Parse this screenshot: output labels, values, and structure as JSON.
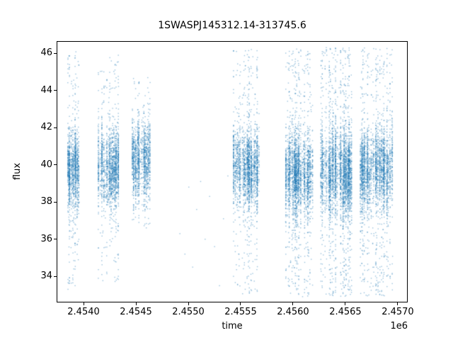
{
  "chart_data": {
    "type": "scatter",
    "title": "1SWASPJ145312.14-313745.6",
    "xlabel": "time",
    "ylabel": "flux",
    "x_offset_label": "1e6",
    "xlim": [
      2453743,
      2457095
    ],
    "ylim": [
      32.6,
      46.65
    ],
    "grid": false,
    "legend": null,
    "point_color": "#1f77b4",
    "point_alpha": 0.45,
    "marker_size_px": 1.4,
    "seed": 123456,
    "x_ticks": {
      "values": [
        2454000,
        2454500,
        2455000,
        2455500,
        2456000,
        2456500,
        2457000
      ],
      "labels": [
        "2.4540",
        "2.4545",
        "2.4550",
        "2.4555",
        "2.4560",
        "2.4565",
        "2.4570"
      ]
    },
    "y_ticks": {
      "values": [
        34,
        36,
        38,
        40,
        42,
        44,
        46
      ],
      "labels": [
        "34",
        "36",
        "38",
        "40",
        "42",
        "44",
        "46"
      ]
    },
    "clusters": [
      {
        "x_min": 2453845,
        "x_max": 2453962,
        "n_points": 1300,
        "n_nights": 12,
        "y_mean": 39.7,
        "y_core_sigma": 1.0,
        "tail_frac": 0.12,
        "y_min": 33.3,
        "y_max": 46.1
      },
      {
        "x_min": 2454132,
        "x_max": 2454340,
        "n_points": 1700,
        "n_nights": 18,
        "y_mean": 39.7,
        "y_core_sigma": 1.05,
        "tail_frac": 0.11,
        "y_min": 33.6,
        "y_max": 45.9
      },
      {
        "x_min": 2454458,
        "x_max": 2454640,
        "n_points": 1400,
        "n_nights": 16,
        "y_mean": 40.1,
        "y_core_sigma": 1.05,
        "tail_frac": 0.07,
        "y_min": 36.6,
        "y_max": 44.7
      },
      {
        "x_min": 2455428,
        "x_max": 2455680,
        "n_points": 2100,
        "n_nights": 22,
        "y_mean": 39.7,
        "y_core_sigma": 1.0,
        "tail_frac": 0.16,
        "y_min": 33.0,
        "y_max": 46.2
      },
      {
        "x_min": 2455928,
        "x_max": 2456190,
        "n_points": 2600,
        "n_nights": 24,
        "y_mean": 39.6,
        "y_core_sigma": 1.05,
        "tail_frac": 0.2,
        "y_min": 32.9,
        "y_max": 46.25
      },
      {
        "x_min": 2456262,
        "x_max": 2456562,
        "n_points": 3200,
        "n_nights": 26,
        "y_mean": 39.6,
        "y_core_sigma": 1.1,
        "tail_frac": 0.23,
        "y_min": 32.9,
        "y_max": 46.3
      },
      {
        "x_min": 2456633,
        "x_max": 2456958,
        "n_points": 2800,
        "n_nights": 24,
        "y_mean": 39.7,
        "y_core_sigma": 1.05,
        "tail_frac": 0.2,
        "y_min": 32.9,
        "y_max": 46.3
      }
    ],
    "sparse_points": [
      [
        2454920,
        36.3
      ],
      [
        2454968,
        35.2
      ],
      [
        2455005,
        38.8
      ],
      [
        2455042,
        34.5
      ],
      [
        2455080,
        37.6
      ],
      [
        2455118,
        39.1
      ],
      [
        2455161,
        36.0
      ],
      [
        2455204,
        38.3
      ],
      [
        2455251,
        35.6
      ],
      [
        2455298,
        33.5
      ],
      [
        2455336,
        37.1
      ],
      [
        2455378,
        39.4
      ]
    ]
  }
}
